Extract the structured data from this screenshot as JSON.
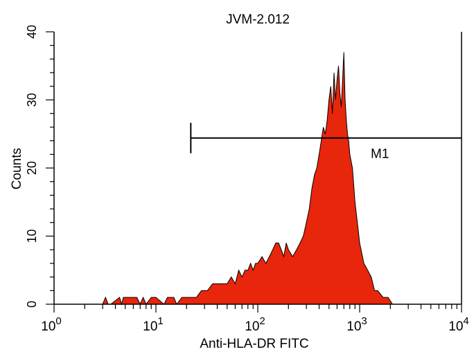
{
  "chart_data": {
    "type": "area",
    "title": "JVM-2.012",
    "xlabel": "Anti-HLA-DR FITC",
    "ylabel": "Counts",
    "x_scale": "log",
    "xlim": [
      1,
      10000
    ],
    "ylim": [
      0,
      40
    ],
    "y_ticks": [
      0,
      10,
      20,
      30,
      40
    ],
    "x_ticks": [
      {
        "base": "10",
        "exp": "0",
        "value": 1
      },
      {
        "base": "10",
        "exp": "1",
        "value": 10
      },
      {
        "base": "10",
        "exp": "2",
        "value": 100
      },
      {
        "base": "10",
        "exp": "3",
        "value": 1000
      },
      {
        "base": "10",
        "exp": "4",
        "value": 10000
      }
    ],
    "fill_color": "#e8260c",
    "outline_color": "#000000",
    "grid": false,
    "series": [
      {
        "x": [
          1,
          3,
          3.2,
          3.4,
          3.6,
          4.4,
          4.6,
          4.8,
          6.5,
          7,
          7.5,
          8,
          9,
          10,
          12,
          13,
          15,
          16,
          18,
          20,
          22,
          25,
          28,
          32,
          36,
          40,
          45,
          50,
          55,
          60,
          65,
          70,
          75,
          80,
          85,
          90,
          95,
          100,
          110,
          120,
          130,
          140,
          150,
          160,
          170,
          180,
          190,
          200,
          220,
          240,
          260,
          280,
          300,
          320,
          340,
          360,
          380,
          400,
          420,
          440,
          460,
          480,
          500,
          520,
          540,
          560,
          580,
          600,
          620,
          640,
          660,
          680,
          700,
          720,
          740,
          760,
          780,
          800,
          850,
          900,
          950,
          1000,
          1100,
          1200,
          1300,
          1400,
          1500,
          1700,
          1900,
          2100,
          2300,
          2500,
          10000
        ],
        "y": [
          0,
          0,
          1,
          0,
          0,
          1,
          0,
          1,
          1,
          0,
          1,
          0,
          1,
          1,
          0,
          1,
          1,
          0,
          1,
          1,
          1,
          1,
          2,
          2,
          3,
          3,
          3,
          3,
          4,
          3,
          5,
          4,
          5,
          5,
          6,
          5,
          6,
          6,
          7,
          6,
          7,
          8,
          9,
          9,
          8,
          7,
          9,
          8,
          7,
          8,
          9,
          10,
          12,
          14,
          17,
          19,
          20,
          22,
          24,
          26,
          25,
          27,
          30,
          32,
          28,
          34,
          30,
          33,
          35,
          31,
          29,
          33,
          37,
          30,
          27,
          25,
          24,
          22,
          20,
          15,
          12,
          9,
          6,
          5,
          4,
          2,
          2,
          1,
          1,
          0,
          0,
          0,
          0
        ]
      }
    ],
    "marker": {
      "label": "M1",
      "x_start": 22,
      "x_end": 10000,
      "y": 24.4
    }
  }
}
